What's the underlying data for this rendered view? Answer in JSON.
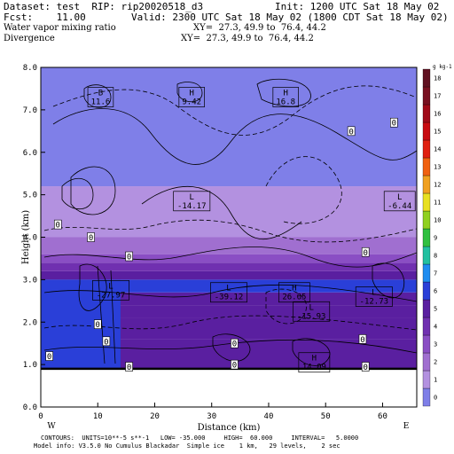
{
  "header": {
    "dataset": "Dataset: test  RIP: rip20020518_d3",
    "init": "Init: 1200 UTC Sat 18 May 02",
    "fcst": "Fcst:    11.00",
    "valid": "Valid: 2300 UTC Sat 18 May 02 (1800 CDT Sat 18 May 02)",
    "field1": "Water vapor mixing ratio",
    "xy1": "XY=  27.3, 49.9 to  76.4, 44.2",
    "field2": "Divergence",
    "xy2": "XY=  27.3, 49.9 to  76.4, 44.2"
  },
  "footer": {
    "line1": "CONTOURS:  UNITS=10**-5 s**-1   LOW= -35.000     HIGH=  60.000     INTERVAL=   5.0000",
    "line2": "Model info: V3.5.0 No Cumulus Blackadar  Simple ice    1 km,   29 levels,    2 sec"
  },
  "chart_data": {
    "type": "heatmap",
    "xlabel": "Distance (km)",
    "ylabel": "Height (km)",
    "xlim": [
      0,
      66
    ],
    "ylim": [
      0,
      8
    ],
    "xticks": [
      "0",
      "10",
      "20",
      "30",
      "40",
      "50",
      "60"
    ],
    "yticks": [
      "0.0",
      "1.0",
      "2.0",
      "3.0",
      "4.0",
      "5.0",
      "6.0",
      "7.0",
      "8.0"
    ],
    "left_end_label": "W",
    "right_end_label": "E",
    "colorbar": {
      "unit": "g kg-1",
      "levels": [
        {
          "label": "0",
          "color": "#7f7fe8"
        },
        {
          "label": "1",
          "color": "#b391e0"
        },
        {
          "label": "2",
          "color": "#a06fd0"
        },
        {
          "label": "3",
          "color": "#8a4ec4"
        },
        {
          "label": "4",
          "color": "#7030b0"
        },
        {
          "label": "5",
          "color": "#5a1fa0"
        },
        {
          "label": "6",
          "color": "#2a3fd8"
        },
        {
          "label": "7",
          "color": "#1e8cf0"
        },
        {
          "label": "8",
          "color": "#22c0a0"
        },
        {
          "label": "9",
          "color": "#30c040"
        },
        {
          "label": "10",
          "color": "#90d020"
        },
        {
          "label": "11",
          "color": "#e8e020"
        },
        {
          "label": "12",
          "color": "#f0a020"
        },
        {
          "label": "13",
          "color": "#f06010"
        },
        {
          "label": "14",
          "color": "#e02010"
        },
        {
          "label": "15",
          "color": "#c80a10"
        },
        {
          "label": "16",
          "color": "#a00a18"
        },
        {
          "label": "17",
          "color": "#781020"
        },
        {
          "label": "18",
          "color": "#601020"
        }
      ]
    },
    "bands": [
      {
        "from": 0.9,
        "to": 1.6,
        "level": 5
      },
      {
        "from": 1.6,
        "to": 2.1,
        "level": 5
      },
      {
        "from": 2.1,
        "to": 2.4,
        "level": 5
      },
      {
        "from": 2.4,
        "to": 2.7,
        "level": 5
      },
      {
        "from": 2.7,
        "to": 3.0,
        "level": 6
      },
      {
        "from": 3.0,
        "to": 3.2,
        "level": 5
      },
      {
        "from": 3.2,
        "to": 3.4,
        "level": 4
      },
      {
        "from": 3.4,
        "to": 3.6,
        "level": 3
      },
      {
        "from": 3.6,
        "to": 4.0,
        "level": 2
      },
      {
        "from": 4.0,
        "to": 5.2,
        "level": 1
      },
      {
        "from": 5.2,
        "to": 8.0,
        "level": 0
      }
    ],
    "left_block": {
      "x": [
        0,
        14
      ],
      "from": 0.9,
      "to": 3.0,
      "level": 6
    },
    "terrain_top": 0.9,
    "extrema": [
      {
        "text": "B\n11.6",
        "x": 10.5,
        "y": 7.3
      },
      {
        "text": "H\n9.42",
        "x": 26.5,
        "y": 7.3
      },
      {
        "text": "H\n16.8",
        "x": 43.0,
        "y": 7.3
      },
      {
        "text": "L\n-14.17",
        "x": 26.5,
        "y": 4.85
      },
      {
        "text": "L\n-6.44",
        "x": 63.0,
        "y": 4.85
      },
      {
        "text": "L\n-27.97",
        "x": 12.3,
        "y": 2.75
      },
      {
        "text": "L\n-39.12",
        "x": 33.0,
        "y": 2.7
      },
      {
        "text": "H\n26.65",
        "x": 44.5,
        "y": 2.7
      },
      {
        "text": "L\n-15.93",
        "x": 47.5,
        "y": 2.25
      },
      {
        "text": "L\n-12.73",
        "x": 58.5,
        "y": 2.6
      },
      {
        "text": "H\n14.09",
        "x": 48.0,
        "y": 1.05
      }
    ],
    "contour_labels": [
      {
        "text": "0",
        "x": 54.5,
        "y": 6.5
      },
      {
        "text": "0",
        "x": 62.0,
        "y": 6.7
      },
      {
        "text": "0",
        "x": 3.0,
        "y": 4.3
      },
      {
        "text": "0",
        "x": 8.8,
        "y": 4.0
      },
      {
        "text": "0",
        "x": 15.5,
        "y": 3.55
      },
      {
        "text": "0",
        "x": 57.0,
        "y": 3.65
      },
      {
        "text": "0",
        "x": 10.0,
        "y": 1.95
      },
      {
        "text": "0",
        "x": 1.5,
        "y": 1.2
      },
      {
        "text": "0",
        "x": 11.5,
        "y": 1.55
      },
      {
        "text": "0",
        "x": 34.0,
        "y": 1.5
      },
      {
        "text": "0",
        "x": 56.5,
        "y": 1.6
      },
      {
        "text": "0",
        "x": 15.5,
        "y": 0.95
      },
      {
        "text": "0",
        "x": 34.0,
        "y": 1.0
      },
      {
        "text": "0",
        "x": 57.0,
        "y": 0.95
      }
    ]
  }
}
